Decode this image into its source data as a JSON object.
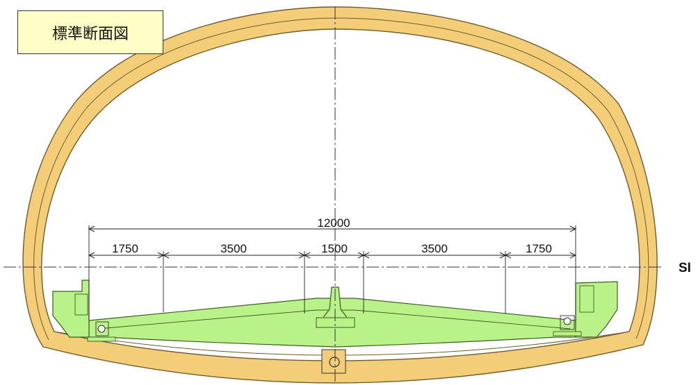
{
  "title": "標準断面図",
  "dimensions": {
    "total_width": "12000",
    "left_shoulder": "1750",
    "left_lane": "3500",
    "median": "1500",
    "right_lane": "3500",
    "right_shoulder": "1750"
  },
  "level_label": "SI",
  "colors": {
    "lining": "#f4cd78",
    "lining_stroke": "#6f5a2c",
    "pavement": "#b9f288",
    "pavement_stroke": "#3d5a1e",
    "title_background": "#fffec6",
    "line": "#222222"
  }
}
